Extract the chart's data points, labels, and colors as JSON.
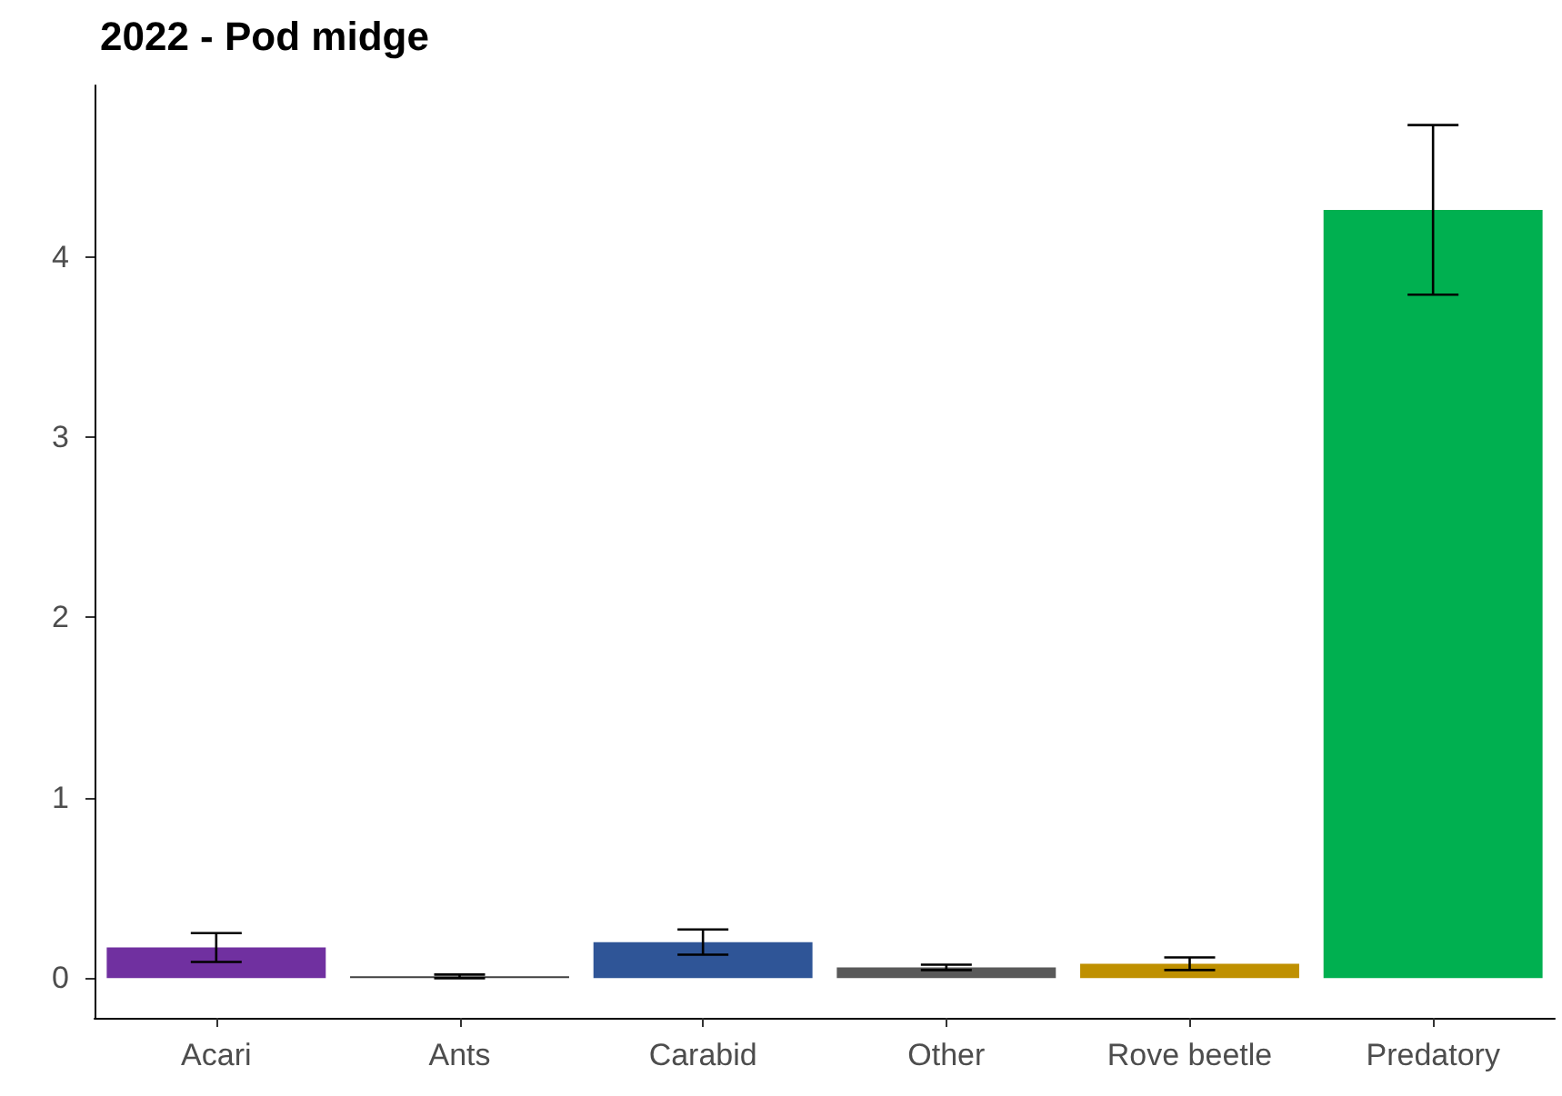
{
  "chart_data": {
    "type": "bar",
    "title": "2022 - Pod midge",
    "categories": [
      "Acari",
      "Ants",
      "Carabid",
      "Other",
      "Rove beetle",
      "Predatory"
    ],
    "values": [
      0.17,
      0.01,
      0.2,
      0.06,
      0.08,
      4.26
    ],
    "colors": [
      "#7030a0",
      "#404040",
      "#2f5597",
      "#595959",
      "#bf9000",
      "#00b050"
    ],
    "errors": [
      0.08,
      0.01,
      0.07,
      0.015,
      0.035,
      0.47
    ],
    "ylim": [
      -0.22,
      4.95
    ],
    "yticks": [
      0,
      1,
      2,
      3,
      4
    ],
    "grid": false
  }
}
